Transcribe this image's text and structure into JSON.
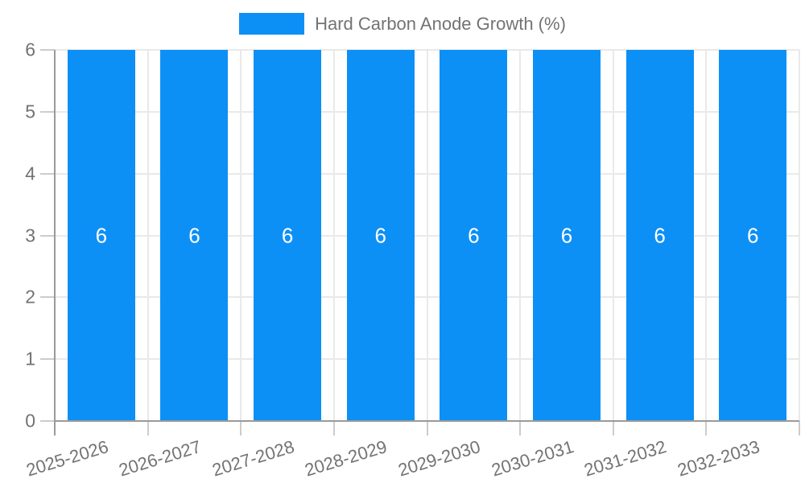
{
  "chart_data": {
    "type": "bar",
    "title": "Hard Carbon Anode Growth (%)",
    "categories": [
      "2025-2026",
      "2026-2027",
      "2027-2028",
      "2028-2029",
      "2029-2030",
      "2030-2031",
      "2031-2032",
      "2032-2033"
    ],
    "series": [
      {
        "name": "Hard Carbon Anode Growth (%)",
        "values": [
          6,
          6,
          6,
          6,
          6,
          6,
          6,
          6
        ]
      }
    ],
    "value_labels": [
      "6",
      "6",
      "6",
      "6",
      "6",
      "6",
      "6",
      "6"
    ],
    "show_value_labels": true,
    "xlabel": "",
    "ylabel": "",
    "ylim": [
      0,
      6
    ],
    "yticks": [
      0,
      1,
      2,
      3,
      4,
      5,
      6
    ],
    "grid": true,
    "legend_position": "top",
    "x_tick_rotation_deg": -17
  },
  "legend": {
    "label": "Hard Carbon Anode Growth (%)"
  },
  "colors": {
    "bar": "#0d90f6",
    "grid": "#e9e9e9",
    "axis": "#9a9a9a",
    "tick": "#cccccc",
    "tick_text": "#737373",
    "legend_text": "#737373",
    "value_label": "#ffffff",
    "background": "#ffffff"
  }
}
